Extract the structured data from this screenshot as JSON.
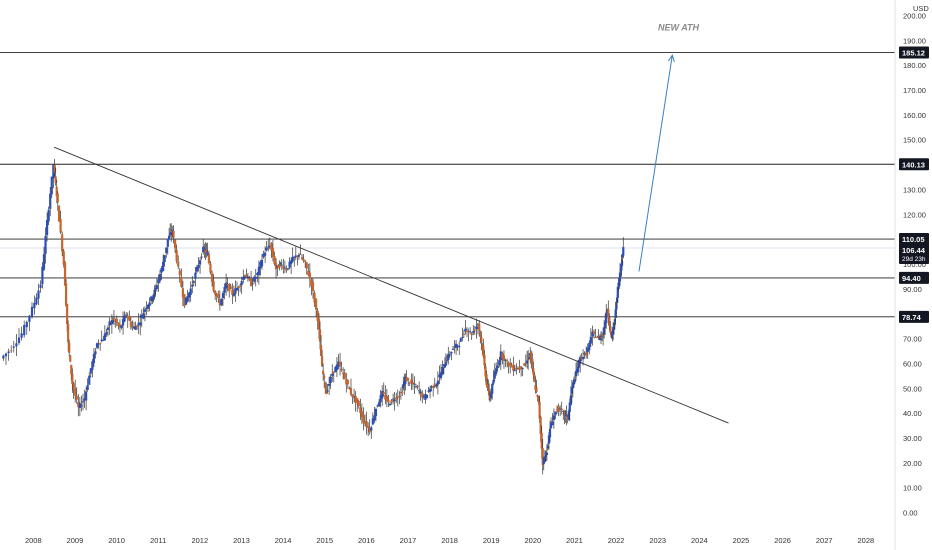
{
  "chart_data": {
    "type": "candlestick",
    "currency": "USD",
    "ylim": [
      -3,
      203
    ],
    "y_ticks": [
      0,
      10,
      20,
      30,
      40,
      50,
      60,
      70,
      80,
      90,
      100,
      110,
      120,
      130,
      140,
      150,
      160,
      170,
      180,
      190,
      200
    ],
    "y_tick_labels": [
      "0.00",
      "10.00",
      "20.00",
      "30.00",
      "40.00",
      "50.00",
      "60.00",
      "70.00",
      "80.00",
      "90.00",
      "100.00",
      "110.00",
      "120.00",
      "130.00",
      "140.00",
      "150.00",
      "160.00",
      "170.00",
      "180.00",
      "190.00",
      "200.00"
    ],
    "x_tick_labels": [
      "2008",
      "2009",
      "2010",
      "2011",
      "2012",
      "2013",
      "2014",
      "2015",
      "2016",
      "2017",
      "2018",
      "2019",
      "2020",
      "2021",
      "2022",
      "2023",
      "2024",
      "2025",
      "2026",
      "2027",
      "2028"
    ],
    "x_years": [
      2008,
      2009,
      2010,
      2011,
      2012,
      2013,
      2014,
      2015,
      2016,
      2017,
      2018,
      2019,
      2020,
      2021,
      2022,
      2023,
      2024,
      2025,
      2026,
      2027,
      2028
    ],
    "xlim": [
      2007.2,
      2028.7
    ],
    "colors": {
      "up": "#2a4fb8",
      "down": "#c8642c",
      "line": "#333333",
      "arrow": "#3a7fc4",
      "badge": "#131722"
    },
    "horizontal_levels": [
      {
        "value": 185.12,
        "label": "185.12"
      },
      {
        "value": 140.13,
        "label": "140.13"
      },
      {
        "value": 110.05,
        "label": "110.05"
      },
      {
        "value": 94.4,
        "label": "94.40"
      },
      {
        "value": 78.74,
        "label": "78.74"
      }
    ],
    "current_price": {
      "value": 106.44,
      "label": "106.44",
      "countdown": "29d 23h"
    },
    "trendline": {
      "from": [
        2008.5,
        147
      ],
      "to": [
        2024.7,
        36
      ]
    },
    "projection_arrow": {
      "from": [
        2022.55,
        97
      ],
      "to": [
        2023.35,
        184
      ]
    },
    "annotation": {
      "text": "NEW ATH",
      "x": 2023.5,
      "y": 194
    },
    "prices_monthly": [
      [
        2007.25,
        62
      ],
      [
        2007.5,
        66
      ],
      [
        2007.75,
        72
      ],
      [
        2008.0,
        82
      ],
      [
        2008.2,
        92
      ],
      [
        2008.35,
        117
      ],
      [
        2008.5,
        140
      ],
      [
        2008.6,
        124
      ],
      [
        2008.75,
        100
      ],
      [
        2008.85,
        68
      ],
      [
        2008.95,
        52
      ],
      [
        2009.1,
        42
      ],
      [
        2009.25,
        46
      ],
      [
        2009.4,
        58
      ],
      [
        2009.55,
        68
      ],
      [
        2009.7,
        70
      ],
      [
        2009.85,
        76
      ],
      [
        2009.95,
        78
      ],
      [
        2010.1,
        74
      ],
      [
        2010.25,
        80
      ],
      [
        2010.4,
        74
      ],
      [
        2010.55,
        76
      ],
      [
        2010.7,
        82
      ],
      [
        2010.85,
        86
      ],
      [
        2010.95,
        90
      ],
      [
        2011.1,
        98
      ],
      [
        2011.25,
        110
      ],
      [
        2011.35,
        114
      ],
      [
        2011.5,
        98
      ],
      [
        2011.65,
        84
      ],
      [
        2011.8,
        90
      ],
      [
        2011.95,
        98
      ],
      [
        2012.1,
        106
      ],
      [
        2012.2,
        104
      ],
      [
        2012.35,
        90
      ],
      [
        2012.5,
        84
      ],
      [
        2012.65,
        92
      ],
      [
        2012.8,
        88
      ],
      [
        2012.95,
        91
      ],
      [
        2013.1,
        96
      ],
      [
        2013.25,
        92
      ],
      [
        2013.4,
        96
      ],
      [
        2013.55,
        104
      ],
      [
        2013.7,
        108
      ],
      [
        2013.85,
        98
      ],
      [
        2013.95,
        100
      ],
      [
        2014.1,
        98
      ],
      [
        2014.25,
        102
      ],
      [
        2014.4,
        104
      ],
      [
        2014.55,
        100
      ],
      [
        2014.7,
        92
      ],
      [
        2014.85,
        78
      ],
      [
        2014.95,
        58
      ],
      [
        2015.05,
        48
      ],
      [
        2015.2,
        56
      ],
      [
        2015.35,
        60
      ],
      [
        2015.5,
        54
      ],
      [
        2015.65,
        48
      ],
      [
        2015.8,
        44
      ],
      [
        2015.95,
        37
      ],
      [
        2016.1,
        33
      ],
      [
        2016.25,
        42
      ],
      [
        2016.4,
        48
      ],
      [
        2016.55,
        44
      ],
      [
        2016.7,
        46
      ],
      [
        2016.85,
        48
      ],
      [
        2016.95,
        54
      ],
      [
        2017.1,
        52
      ],
      [
        2017.25,
        50
      ],
      [
        2017.4,
        46
      ],
      [
        2017.55,
        50
      ],
      [
        2017.7,
        52
      ],
      [
        2017.85,
        58
      ],
      [
        2017.95,
        62
      ],
      [
        2018.1,
        66
      ],
      [
        2018.25,
        68
      ],
      [
        2018.4,
        74
      ],
      [
        2018.55,
        72
      ],
      [
        2018.7,
        76
      ],
      [
        2018.8,
        66
      ],
      [
        2018.9,
        52
      ],
      [
        2018.98,
        46
      ],
      [
        2019.1,
        56
      ],
      [
        2019.25,
        64
      ],
      [
        2019.4,
        60
      ],
      [
        2019.55,
        58
      ],
      [
        2019.7,
        58
      ],
      [
        2019.85,
        60
      ],
      [
        2019.95,
        64
      ],
      [
        2020.05,
        52
      ],
      [
        2020.15,
        44
      ],
      [
        2020.25,
        20
      ],
      [
        2020.35,
        25
      ],
      [
        2020.45,
        36
      ],
      [
        2020.6,
        42
      ],
      [
        2020.75,
        40
      ],
      [
        2020.85,
        38
      ],
      [
        2020.95,
        50
      ],
      [
        2021.05,
        56
      ],
      [
        2021.15,
        62
      ],
      [
        2021.3,
        64
      ],
      [
        2021.45,
        72
      ],
      [
        2021.6,
        70
      ],
      [
        2021.7,
        72
      ],
      [
        2021.8,
        82
      ],
      [
        2021.9,
        70
      ],
      [
        2021.98,
        78
      ],
      [
        2022.05,
        90
      ],
      [
        2022.12,
        98
      ],
      [
        2022.18,
        106.44
      ]
    ]
  }
}
